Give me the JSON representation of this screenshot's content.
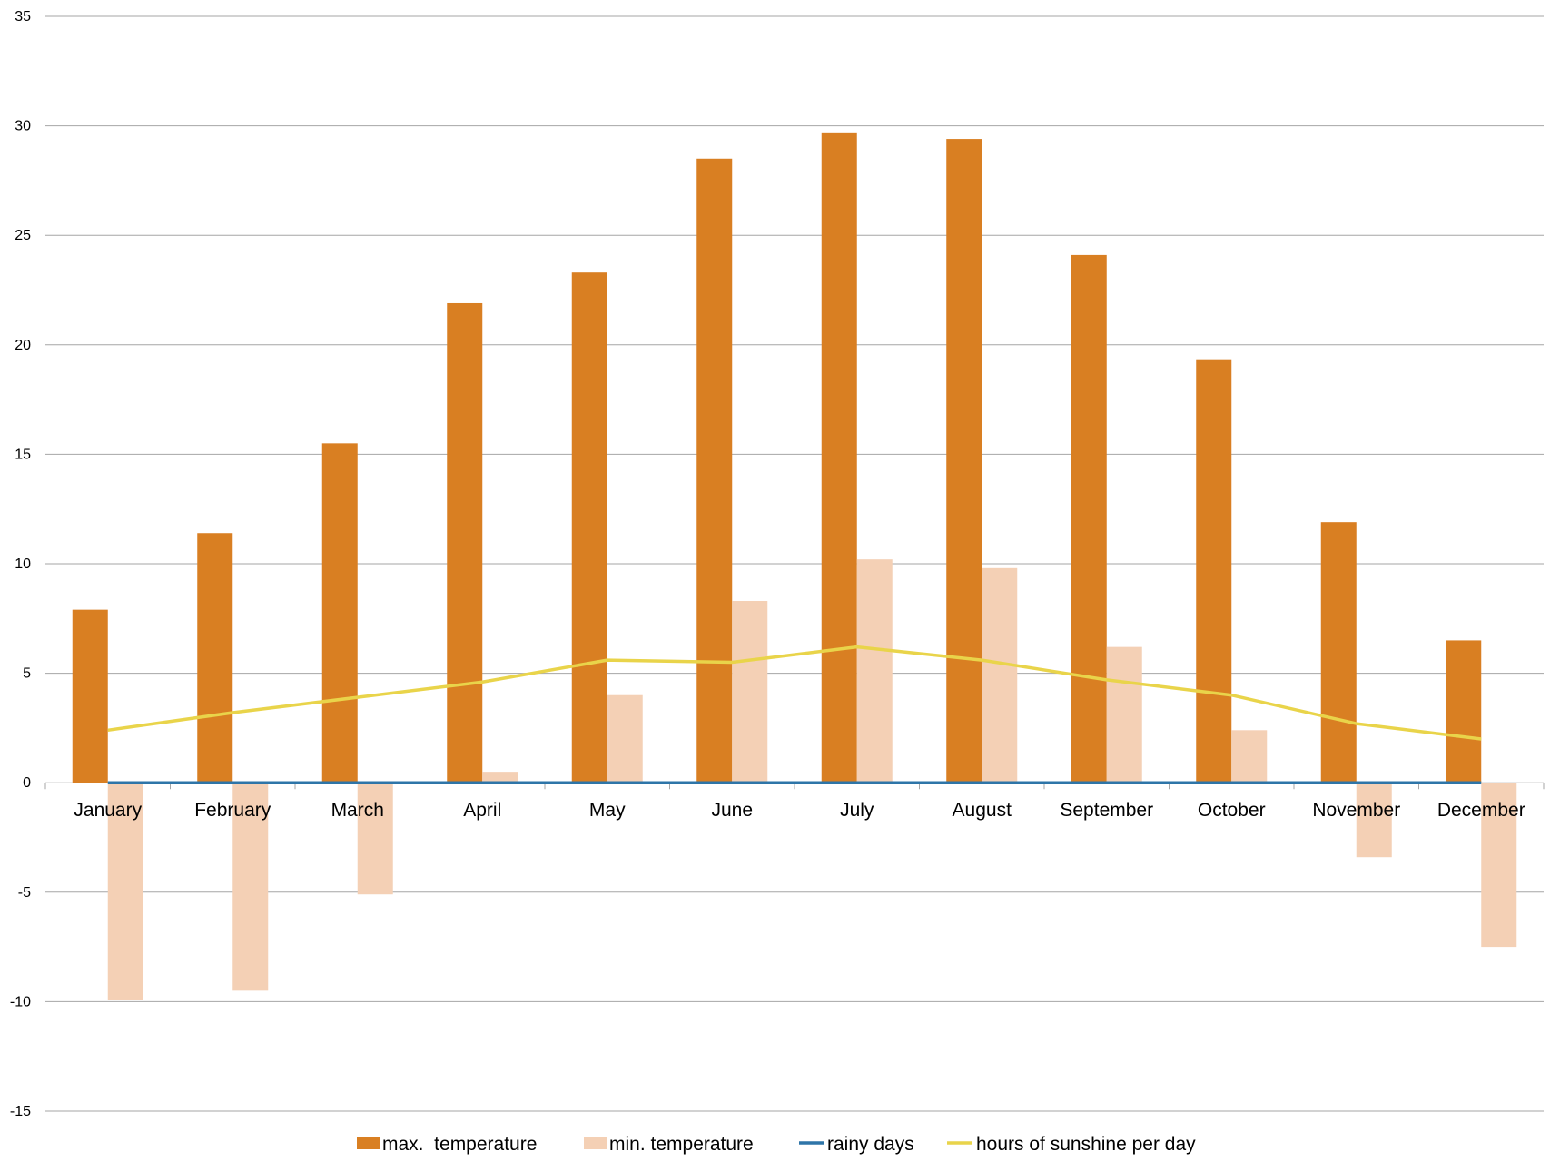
{
  "chart_data": {
    "type": "bar",
    "title": "",
    "xlabel": "",
    "ylabel": "",
    "ylim": [
      -15,
      35
    ],
    "yticks": [
      35,
      30,
      25,
      20,
      15,
      10,
      5,
      0,
      -5,
      -10,
      -15
    ],
    "grid": true,
    "legend_position": "bottom",
    "categories": [
      "January",
      "February",
      "March",
      "April",
      "May",
      "June",
      "July",
      "August",
      "September",
      "October",
      "November",
      "December"
    ],
    "series": [
      {
        "name": "max.  temperature",
        "kind": "bar",
        "color": "#d97f22",
        "values": [
          7.9,
          11.4,
          15.5,
          21.9,
          23.3,
          28.5,
          29.7,
          29.4,
          24.1,
          19.3,
          11.9,
          6.5
        ]
      },
      {
        "name": "min. temperature",
        "kind": "bar",
        "color": "#f4d0b5",
        "values": [
          -9.9,
          -9.5,
          -5.1,
          0.5,
          4.0,
          8.3,
          10.2,
          9.8,
          6.2,
          2.4,
          -3.4,
          -7.5
        ]
      },
      {
        "name": "rainy days",
        "kind": "line",
        "color": "#2e75a8",
        "values": [
          0,
          0,
          0,
          0,
          0,
          0,
          0,
          0,
          0,
          0,
          0,
          0
        ]
      },
      {
        "name": "hours of sunshine per day",
        "kind": "line",
        "color": "#e9d44a",
        "values": [
          2.4,
          3.2,
          3.9,
          4.6,
          5.6,
          5.5,
          6.2,
          5.6,
          4.7,
          4.0,
          2.7,
          2.0
        ]
      }
    ]
  }
}
